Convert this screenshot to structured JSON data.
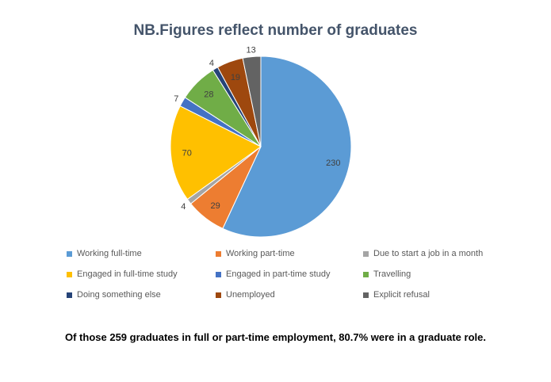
{
  "chart_data": {
    "type": "pie",
    "title": "NB.Figures reflect number of graduates",
    "start_angle_deg": 0,
    "direction": "clockwise",
    "slices": [
      {
        "label": "Working full-time",
        "value": 230,
        "color": "#5b9bd5"
      },
      {
        "label": "Working part-time",
        "value": 29,
        "color": "#ed7d31"
      },
      {
        "label": "Due to start a job in a month",
        "value": 4,
        "color": "#a5a5a5"
      },
      {
        "label": "Engaged in full-time study",
        "value": 70,
        "color": "#ffc000"
      },
      {
        "label": "Engaged in part-time study",
        "value": 7,
        "color": "#4472c4"
      },
      {
        "label": "Travelling",
        "value": 28,
        "color": "#70ad47"
      },
      {
        "label": "Doing something else",
        "value": 4,
        "color": "#264478"
      },
      {
        "label": "Unemployed",
        "value": 19,
        "color": "#9e480e"
      },
      {
        "label": "Explicit refusal",
        "value": 13,
        "color": "#636363"
      }
    ],
    "legend_position": "bottom"
  },
  "footnote": "Of those  259 graduates in full or part-time employment, 80.7% were in a graduate role."
}
